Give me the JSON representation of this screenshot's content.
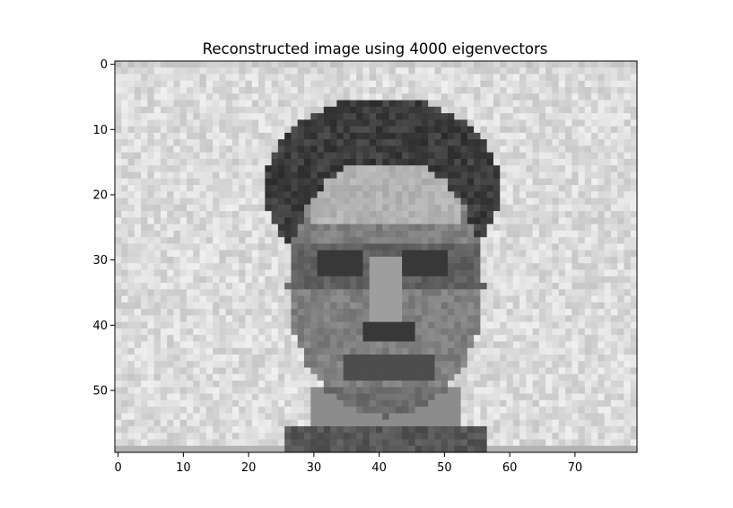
{
  "chart_data": {
    "type": "heatmap",
    "title": "Reconstructed image using 4000 eigenvectors",
    "xlabel": "",
    "ylabel": "",
    "colormap": "grayscale",
    "image_shape": [
      60,
      80
    ],
    "xlim": [
      -0.5,
      79.5
    ],
    "ylim": [
      59.5,
      -0.5
    ],
    "x_ticks": [
      0,
      10,
      20,
      30,
      40,
      50,
      60,
      70
    ],
    "y_ticks": [
      0,
      10,
      20,
      30,
      40,
      50
    ],
    "x_tick_labels": [
      "0",
      "10",
      "20",
      "30",
      "40",
      "50",
      "60",
      "70"
    ],
    "y_tick_labels": [
      "0",
      "10",
      "20",
      "30",
      "40",
      "50"
    ],
    "grid": false
  }
}
